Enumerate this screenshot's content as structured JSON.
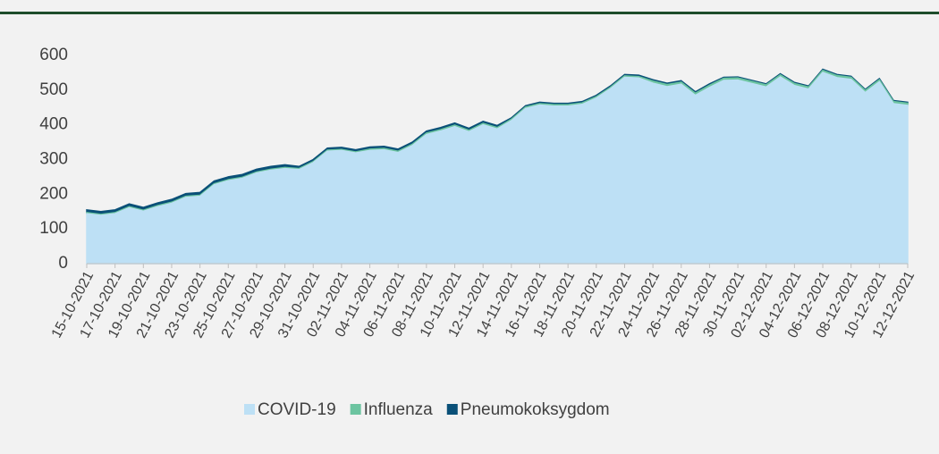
{
  "chart_data": {
    "type": "stacked_area",
    "categories": [
      "15-10-2021",
      null,
      "17-10-2021",
      null,
      "19-10-2021",
      null,
      "21-10-2021",
      null,
      "23-10-2021",
      null,
      "25-10-2021",
      null,
      "27-10-2021",
      null,
      "29-10-2021",
      null,
      "31-10-2021",
      null,
      "02-11-2021",
      null,
      "04-11-2021",
      null,
      "06-11-2021",
      null,
      "08-11-2021",
      null,
      "10-11-2021",
      null,
      "12-11-2021",
      null,
      "14-11-2021",
      null,
      "16-11-2021",
      null,
      "18-11-2021",
      null,
      "20-11-2021",
      null,
      "22-11-2021",
      null,
      "24-11-2021",
      null,
      "26-11-2021",
      null,
      "28-11-2021",
      null,
      "30-11-2021",
      null,
      "02-12-2021",
      null,
      "04-12-2021",
      null,
      "06-12-2021",
      null,
      "08-12-2021",
      null,
      "10-12-2021",
      null,
      "12-12-2021"
    ],
    "series": [
      {
        "name": "COVID-19",
        "color": "#bde0f5",
        "values": [
          144,
          139,
          144,
          161,
          151,
          164,
          174,
          191,
          194,
          227,
          239,
          246,
          261,
          269,
          274,
          271,
          291,
          324,
          326,
          319,
          326,
          328,
          320,
          340,
          372,
          382,
          395,
          380,
          400,
          388,
          412,
          447,
          457,
          454,
          454,
          459,
          477,
          504,
          537,
          535,
          520,
          510,
          517,
          485,
          508,
          528,
          529,
          519,
          509,
          538,
          513,
          503,
          551,
          536,
          531,
          493,
          524,
          461,
          456
        ]
      },
      {
        "name": "Influenza",
        "color": "#6cc4a0",
        "values": [
          3,
          3,
          3,
          3,
          3,
          3,
          3,
          3,
          3,
          3,
          3,
          3,
          3,
          3,
          3,
          3,
          3,
          3,
          3,
          3,
          4,
          4,
          4,
          4,
          4,
          4,
          4,
          4,
          4,
          4,
          4,
          4,
          4,
          4,
          4,
          4,
          4,
          4,
          4,
          4,
          6,
          6,
          6,
          6,
          6,
          6,
          6,
          6,
          6,
          6,
          6,
          6,
          6,
          6,
          6,
          6,
          6,
          6,
          6
        ]
      },
      {
        "name": "Pneumokoksygdom",
        "color": "#0a5078",
        "values": [
          8,
          8,
          8,
          8,
          8,
          8,
          8,
          8,
          8,
          8,
          8,
          8,
          8,
          8,
          8,
          6,
          6,
          6,
          6,
          6,
          6,
          6,
          6,
          6,
          6,
          6,
          6,
          6,
          6,
          6,
          4,
          4,
          4,
          4,
          4,
          4,
          4,
          4,
          4,
          4,
          4,
          4,
          4,
          4,
          4,
          3,
          3,
          3,
          3,
          3,
          3,
          3,
          3,
          3,
          3,
          3,
          3,
          3,
          3
        ]
      }
    ],
    "ylim": [
      0,
      600
    ],
    "yticks": [
      0,
      100,
      200,
      300,
      400,
      500,
      600
    ],
    "legend": "bottom"
  }
}
